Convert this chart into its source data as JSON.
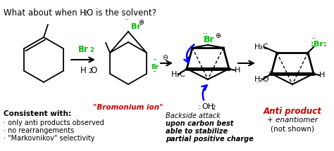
{
  "bg": "#ffffff",
  "title_parts": [
    "What about when H",
    "2",
    "O is the solvent?"
  ],
  "arrow1_label_top": "Br2",
  "arrow1_label_bot": "H2O",
  "bromonium_label": "\"Bromonium ion\"",
  "consistent_title": "Consistent with:",
  "consistent_lines": [
    "· only anti products observed",
    "· no rearrangements",
    "· \"Markovnikov\" selectivity"
  ],
  "backside_lines": [
    "Backside attack",
    "upon carbon best",
    "able to stabilize",
    "partial positive charge"
  ],
  "anti_label": "Anti product",
  "enantiomer_lines": [
    "+ enantiomer",
    "(not shown)"
  ]
}
